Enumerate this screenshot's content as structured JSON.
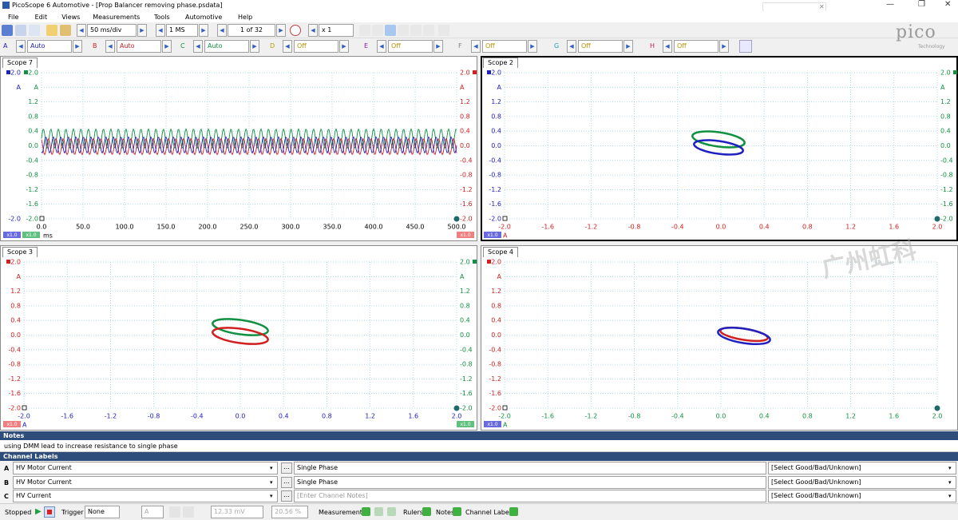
{
  "window": {
    "title": "PicoScope 6 Automotive - [Prop Balancer removing phase.psdata]"
  },
  "menu": [
    "File",
    "Edit",
    "Views",
    "Measurements",
    "Tools",
    "Automotive",
    "Help"
  ],
  "toolbar": {
    "timebase": "50 ms/div",
    "samples": "1 MS",
    "capture": "1 of 32",
    "zoom": "x 1"
  },
  "channels": [
    {
      "letter": "A",
      "range": "Auto",
      "color": "#2020c0"
    },
    {
      "letter": "B",
      "range": "Auto",
      "color": "#d02020"
    },
    {
      "letter": "C",
      "range": "Auto",
      "color": "#109040"
    },
    {
      "letter": "D",
      "range": "Off",
      "color": "#b8a000"
    },
    {
      "letter": "E",
      "range": "Off",
      "color": "#8020a0"
    },
    {
      "letter": "F",
      "range": "Off",
      "color": "#808080"
    },
    {
      "letter": "G",
      "range": "Off",
      "color": "#20a0b0"
    },
    {
      "letter": "H",
      "range": "Off",
      "color": "#c02060"
    }
  ],
  "logo": {
    "name": "pico",
    "tagline": "Technology"
  },
  "scopes": [
    {
      "tab": "Scope 7",
      "y_axes": [
        {
          "side": "left",
          "color": "#2020c0",
          "labels": [
            "2.0",
            "A",
            null,
            null,
            null,
            null,
            null,
            null,
            null,
            null,
            "-2.0"
          ]
        },
        {
          "side": "left",
          "color": "#109040",
          "labels": [
            "2.0",
            "A",
            "1.2",
            "0.8",
            "0.4",
            "0.0",
            "-0.4",
            "-0.8",
            "-1.2",
            "-1.6",
            "-2.0"
          ]
        },
        {
          "side": "right",
          "color": "#d02020",
          "labels": [
            "2.0",
            "A",
            "1.2",
            "0.8",
            "0.4",
            "0.0",
            "-0.4",
            "-0.8",
            "-1.2",
            "-1.6",
            "-2.0"
          ]
        }
      ],
      "x_labels": [
        "0.0",
        "50.0",
        "100.0",
        "150.0",
        "200.0",
        "250.0",
        "300.0",
        "350.0",
        "400.0",
        "450.0",
        "500.0"
      ],
      "x_color": "#000000",
      "x_unit": "ms",
      "badges_left": [
        {
          "text": "x1.0",
          "color": "#6a6ae0"
        },
        {
          "text": "x1.0",
          "color": "#60c080"
        }
      ],
      "badges_right": [
        {
          "text": "x1.0",
          "color": "#f08080"
        }
      ]
    },
    {
      "tab": "Scope 2",
      "y_axes": [
        {
          "side": "left",
          "color": "#2020c0",
          "labels": [
            "2.0",
            "A",
            "1.2",
            "0.8",
            "0.4",
            "0.0",
            "-0.4",
            "-0.8",
            "-1.2",
            "-1.6",
            "-2.0"
          ]
        },
        {
          "side": "right",
          "color": "#109040",
          "labels": [
            "2.0",
            "A",
            "1.2",
            "0.8",
            "0.4",
            "0.0",
            "-0.4",
            "-0.8",
            "-1.2",
            "-1.6",
            "-2.0"
          ]
        }
      ],
      "x_labels": [
        "-2.0",
        "-1.6",
        "-1.2",
        "-0.8",
        "-0.4",
        "0.0",
        "0.4",
        "0.8",
        "1.2",
        "1.6",
        "2.0"
      ],
      "x_color": "#d02020",
      "x_unit": "A",
      "badges_left": [
        {
          "text": "x1.0",
          "color": "#6a6ae0"
        }
      ],
      "badges_right": []
    },
    {
      "tab": "Scope 3",
      "y_axes": [
        {
          "side": "left",
          "color": "#d02020",
          "labels": [
            "2.0",
            "A",
            "1.2",
            "0.8",
            "0.4",
            "0.0",
            "-0.4",
            "-0.8",
            "-1.2",
            "-1.6",
            "-2.0"
          ]
        },
        {
          "side": "right",
          "color": "#109040",
          "labels": [
            "2.0",
            "A",
            "1.2",
            "0.8",
            "0.4",
            "0.0",
            "-0.4",
            "-0.8",
            "-1.2",
            "-1.6",
            "-2.0"
          ]
        }
      ],
      "x_labels": [
        "-2.0",
        "-1.6",
        "-1.2",
        "-0.8",
        "-0.4",
        "0.0",
        "0.4",
        "0.8",
        "1.2",
        "1.6",
        "2.0"
      ],
      "x_color": "#2020c0",
      "x_unit": "A",
      "badges_left": [
        {
          "text": "x1.0",
          "color": "#f08080"
        }
      ],
      "badges_right": [
        {
          "text": "x1.0",
          "color": "#60c080"
        }
      ]
    },
    {
      "tab": "Scope 4",
      "y_axes": [
        {
          "side": "left",
          "color": "#d02020",
          "labels": [
            "2.0",
            "A",
            "1.2",
            "0.8",
            "0.4",
            "0.0",
            "-0.4",
            "-0.8",
            "-1.2",
            "-1.6",
            "-2.0"
          ]
        }
      ],
      "x_labels": [
        "-2.0",
        "-1.6",
        "-1.2",
        "-0.8",
        "-0.4",
        "0.0",
        "0.4",
        "0.8",
        "1.2",
        "1.6",
        "2.0"
      ],
      "x_color": "#109040",
      "x_unit": "A",
      "badges_left": [
        {
          "text": "x1.0",
          "color": "#6a6ae0"
        }
      ],
      "badges_right": []
    }
  ],
  "watermark": "广州虹科",
  "notes": {
    "title": "Notes",
    "text": "using DMM lead to increase resistance to single phase"
  },
  "channel_labels": {
    "title": "Channel Labels",
    "rows": [
      {
        "channel": "A",
        "label": "HV Motor Current",
        "notes": "Single Phase",
        "status": "[Select Good/Bad/Unknown]"
      },
      {
        "channel": "B",
        "label": "HV Motor Current",
        "notes": "Single Phase",
        "status": "[Select Good/Bad/Unknown]"
      },
      {
        "channel": "C",
        "label": "HV Current",
        "notes": "[Enter Channel Notes]",
        "status": "[Select Good/Bad/Unknown]"
      }
    ]
  },
  "status": {
    "state": "Stopped",
    "trigger_label": "Trigger",
    "trigger": "None",
    "trigger_channel": "A",
    "level": "12.33 mV",
    "pretrigger": "20.56 %",
    "measurements": "Measurements",
    "rulers": "Rulers",
    "notes": "Notes",
    "channel_labels": "Channel Labels"
  }
}
